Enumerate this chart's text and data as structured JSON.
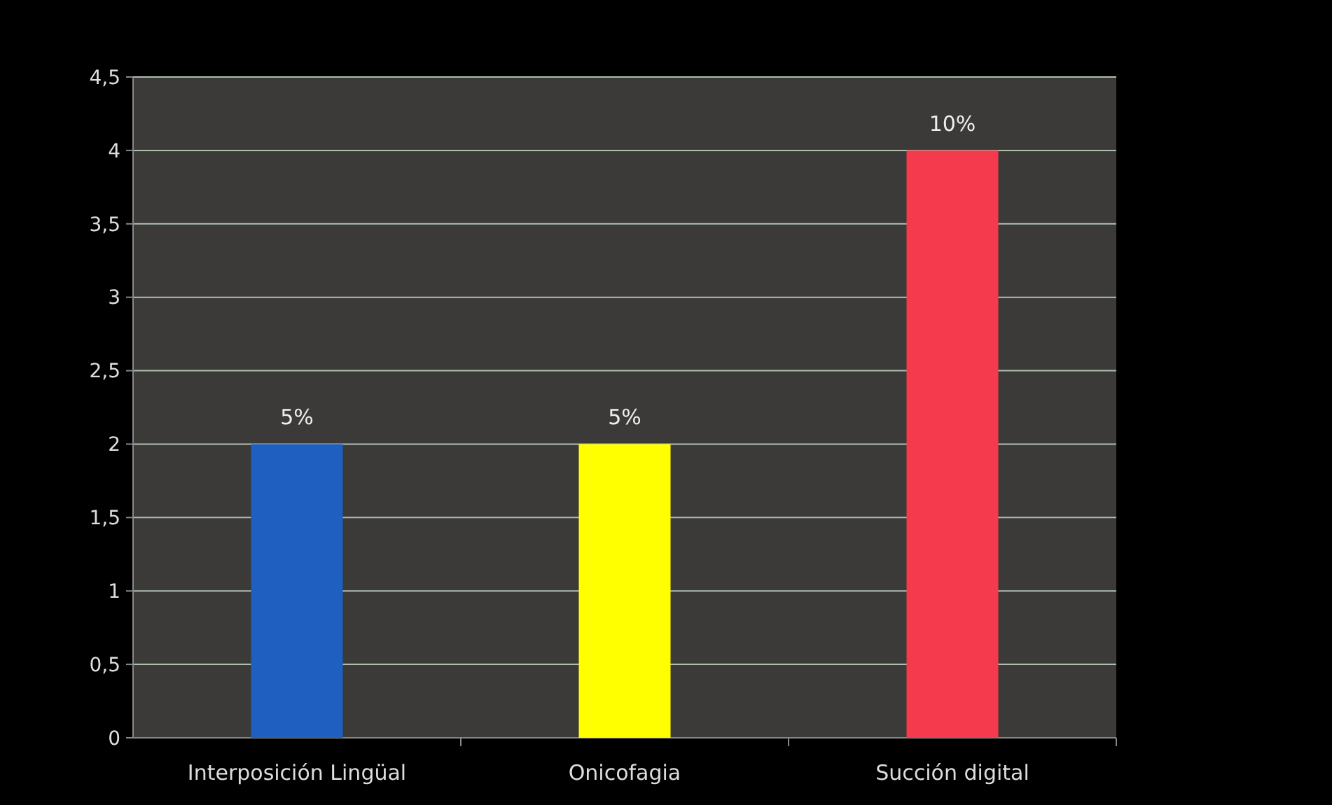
{
  "chart_data": {
    "type": "bar",
    "categories": [
      "Interposición Lingüal",
      "Onicofagia",
      "Succión digital"
    ],
    "values": [
      2,
      2,
      4
    ],
    "colors": [
      "#1f5fbf",
      "#ffff00",
      "#f43a4c"
    ],
    "annotations": [
      {
        "text": "5%",
        "x": "Interposición Lingüal",
        "y": 2
      },
      {
        "text": "5%",
        "x": "Onicofagia",
        "y": 2
      },
      {
        "text": "10%",
        "x": "Succión digital",
        "y": 4
      }
    ],
    "ylim": [
      0,
      4.5
    ],
    "yticks": [
      0,
      {
        "value": 0.5,
        "label": "0,5"
      },
      1,
      {
        "value": 1.5,
        "label": "1,5"
      },
      2,
      {
        "value": 2.5,
        "label": "2,5"
      },
      3,
      {
        "value": 3.5,
        "label": "3,5"
      },
      4,
      {
        "value": 4.5,
        "label": "4,5"
      }
    ],
    "grid": "y"
  }
}
